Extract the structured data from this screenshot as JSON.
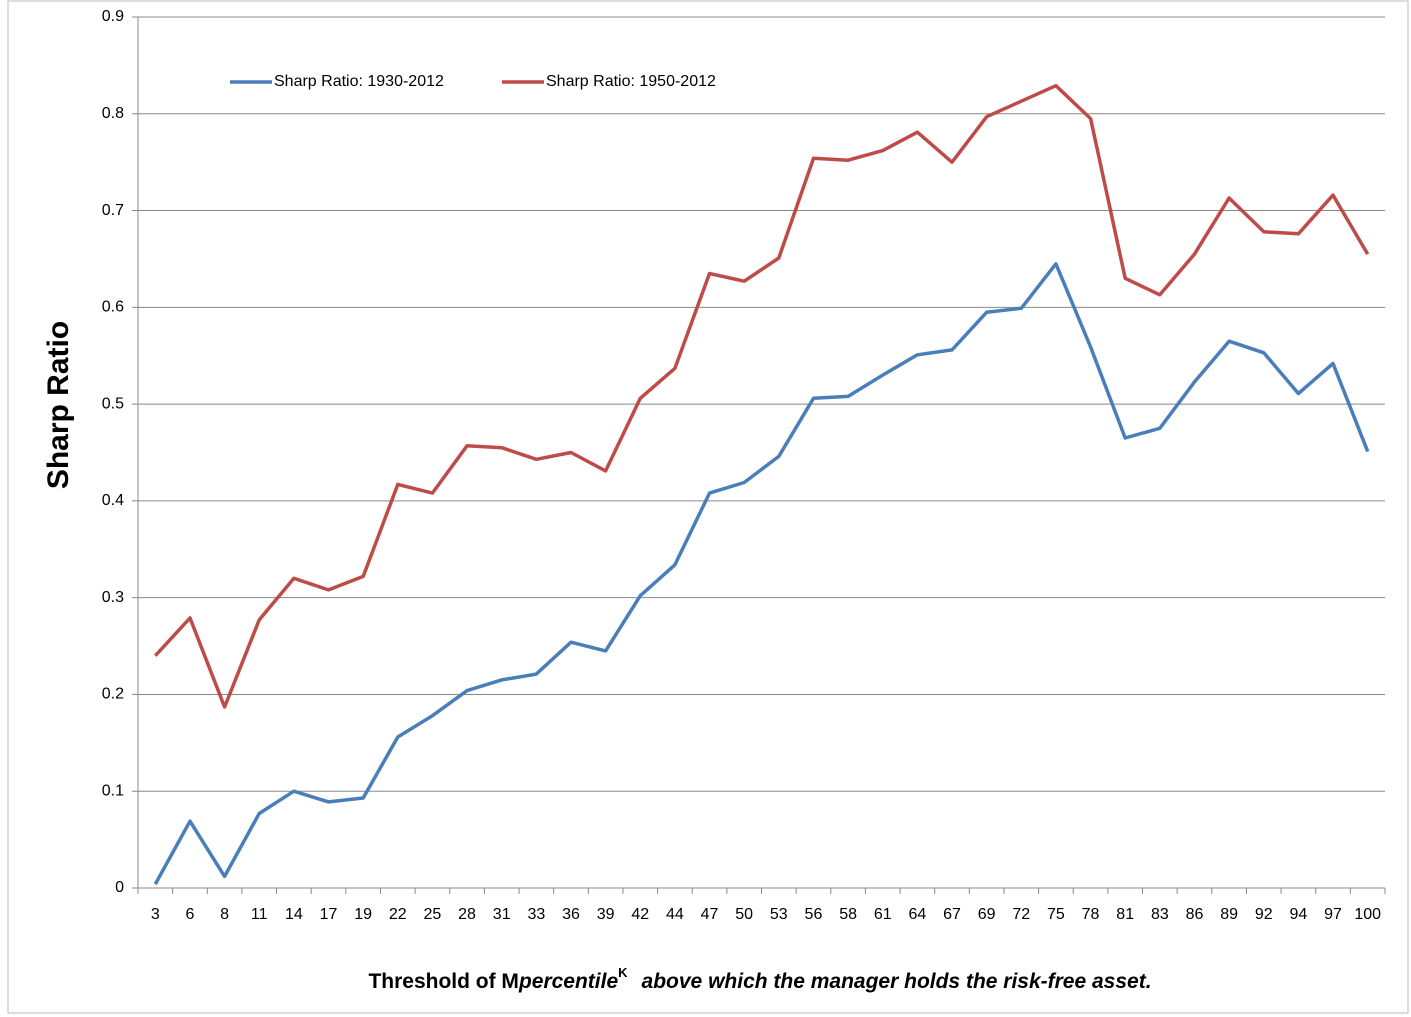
{
  "chart_data": {
    "type": "line",
    "ylabel": "Sharp Ratio",
    "xlabel": {
      "prefix": "Threshold of M",
      "italic": "percentile",
      "superscript": "K",
      "suffix": "above which the manager holds the risk-free asset."
    },
    "categories": [
      "3",
      "6",
      "8",
      "11",
      "14",
      "17",
      "19",
      "22",
      "25",
      "28",
      "31",
      "33",
      "36",
      "39",
      "42",
      "44",
      "47",
      "50",
      "53",
      "56",
      "58",
      "61",
      "64",
      "67",
      "69",
      "72",
      "75",
      "78",
      "81",
      "83",
      "86",
      "89",
      "92",
      "94",
      "97",
      "100"
    ],
    "series": [
      {
        "name": "Sharp Ratio: 1930-2012",
        "color": "#4a7ebb",
        "values": [
          0.004,
          0.069,
          0.012,
          0.077,
          0.1,
          0.089,
          0.093,
          0.156,
          0.178,
          0.204,
          0.215,
          0.221,
          0.254,
          0.245,
          0.302,
          0.334,
          0.408,
          0.419,
          0.446,
          0.506,
          0.508,
          0.53,
          0.551,
          0.556,
          0.595,
          0.599,
          0.645,
          0.559,
          0.465,
          0.475,
          0.523,
          0.565,
          0.553,
          0.511,
          0.542,
          0.451
        ]
      },
      {
        "name": "Sharp Ratio: 1950-2012",
        "color": "#be4b48",
        "values": [
          0.24,
          0.279,
          0.187,
          0.277,
          0.32,
          0.308,
          0.322,
          0.417,
          0.408,
          0.457,
          0.455,
          0.443,
          0.45,
          0.431,
          0.506,
          0.537,
          0.635,
          0.627,
          0.651,
          0.754,
          0.752,
          0.762,
          0.781,
          0.75,
          0.797,
          0.813,
          0.829,
          0.795,
          0.63,
          0.613,
          0.655,
          0.713,
          0.678,
          0.676,
          0.716,
          0.655
        ]
      }
    ],
    "ylim": [
      0,
      0.9
    ],
    "yticks": [
      0,
      0.1,
      0.2,
      0.3,
      0.4,
      0.5,
      0.6,
      0.7,
      0.8,
      0.9
    ],
    "grid": true,
    "legend": "top-left"
  }
}
